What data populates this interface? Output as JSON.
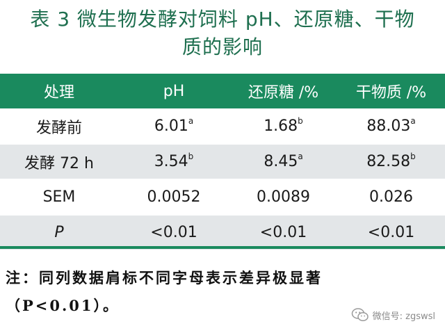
{
  "title": {
    "line1": "表 3  微生物发酵对饲料 pH、还原糖、干物",
    "line2": "质的影响"
  },
  "table": {
    "headers": [
      "处理",
      "pH",
      "还原糖 /%",
      "干物质 /%"
    ],
    "rows": [
      {
        "label": "发酵前",
        "cells": [
          {
            "v": "6.01",
            "s": "a"
          },
          {
            "v": "1.68",
            "s": "b"
          },
          {
            "v": "88.03",
            "s": "a"
          }
        ]
      },
      {
        "label": "发酵 72 h",
        "cells": [
          {
            "v": "3.54",
            "s": "b"
          },
          {
            "v": "8.45",
            "s": "a"
          },
          {
            "v": "82.58",
            "s": "b"
          }
        ]
      },
      {
        "label": "SEM",
        "cells": [
          {
            "v": "0.0052",
            "s": ""
          },
          {
            "v": "0.0089",
            "s": ""
          },
          {
            "v": "0.026",
            "s": ""
          }
        ]
      },
      {
        "label": "P",
        "cells": [
          {
            "v": "<0.01",
            "s": ""
          },
          {
            "v": "<0.01",
            "s": ""
          },
          {
            "v": "<0.01",
            "s": ""
          }
        ]
      }
    ]
  },
  "note": {
    "line1": "注：同列数据肩标不同字母表示差异极显著",
    "line2": "（P<0.01）。"
  },
  "watermark": {
    "text": "微信号: zgswsl"
  },
  "colors": {
    "accent": "#1a8a5e",
    "title": "#1e6f4f",
    "row_alt": "#e3e6e8"
  }
}
